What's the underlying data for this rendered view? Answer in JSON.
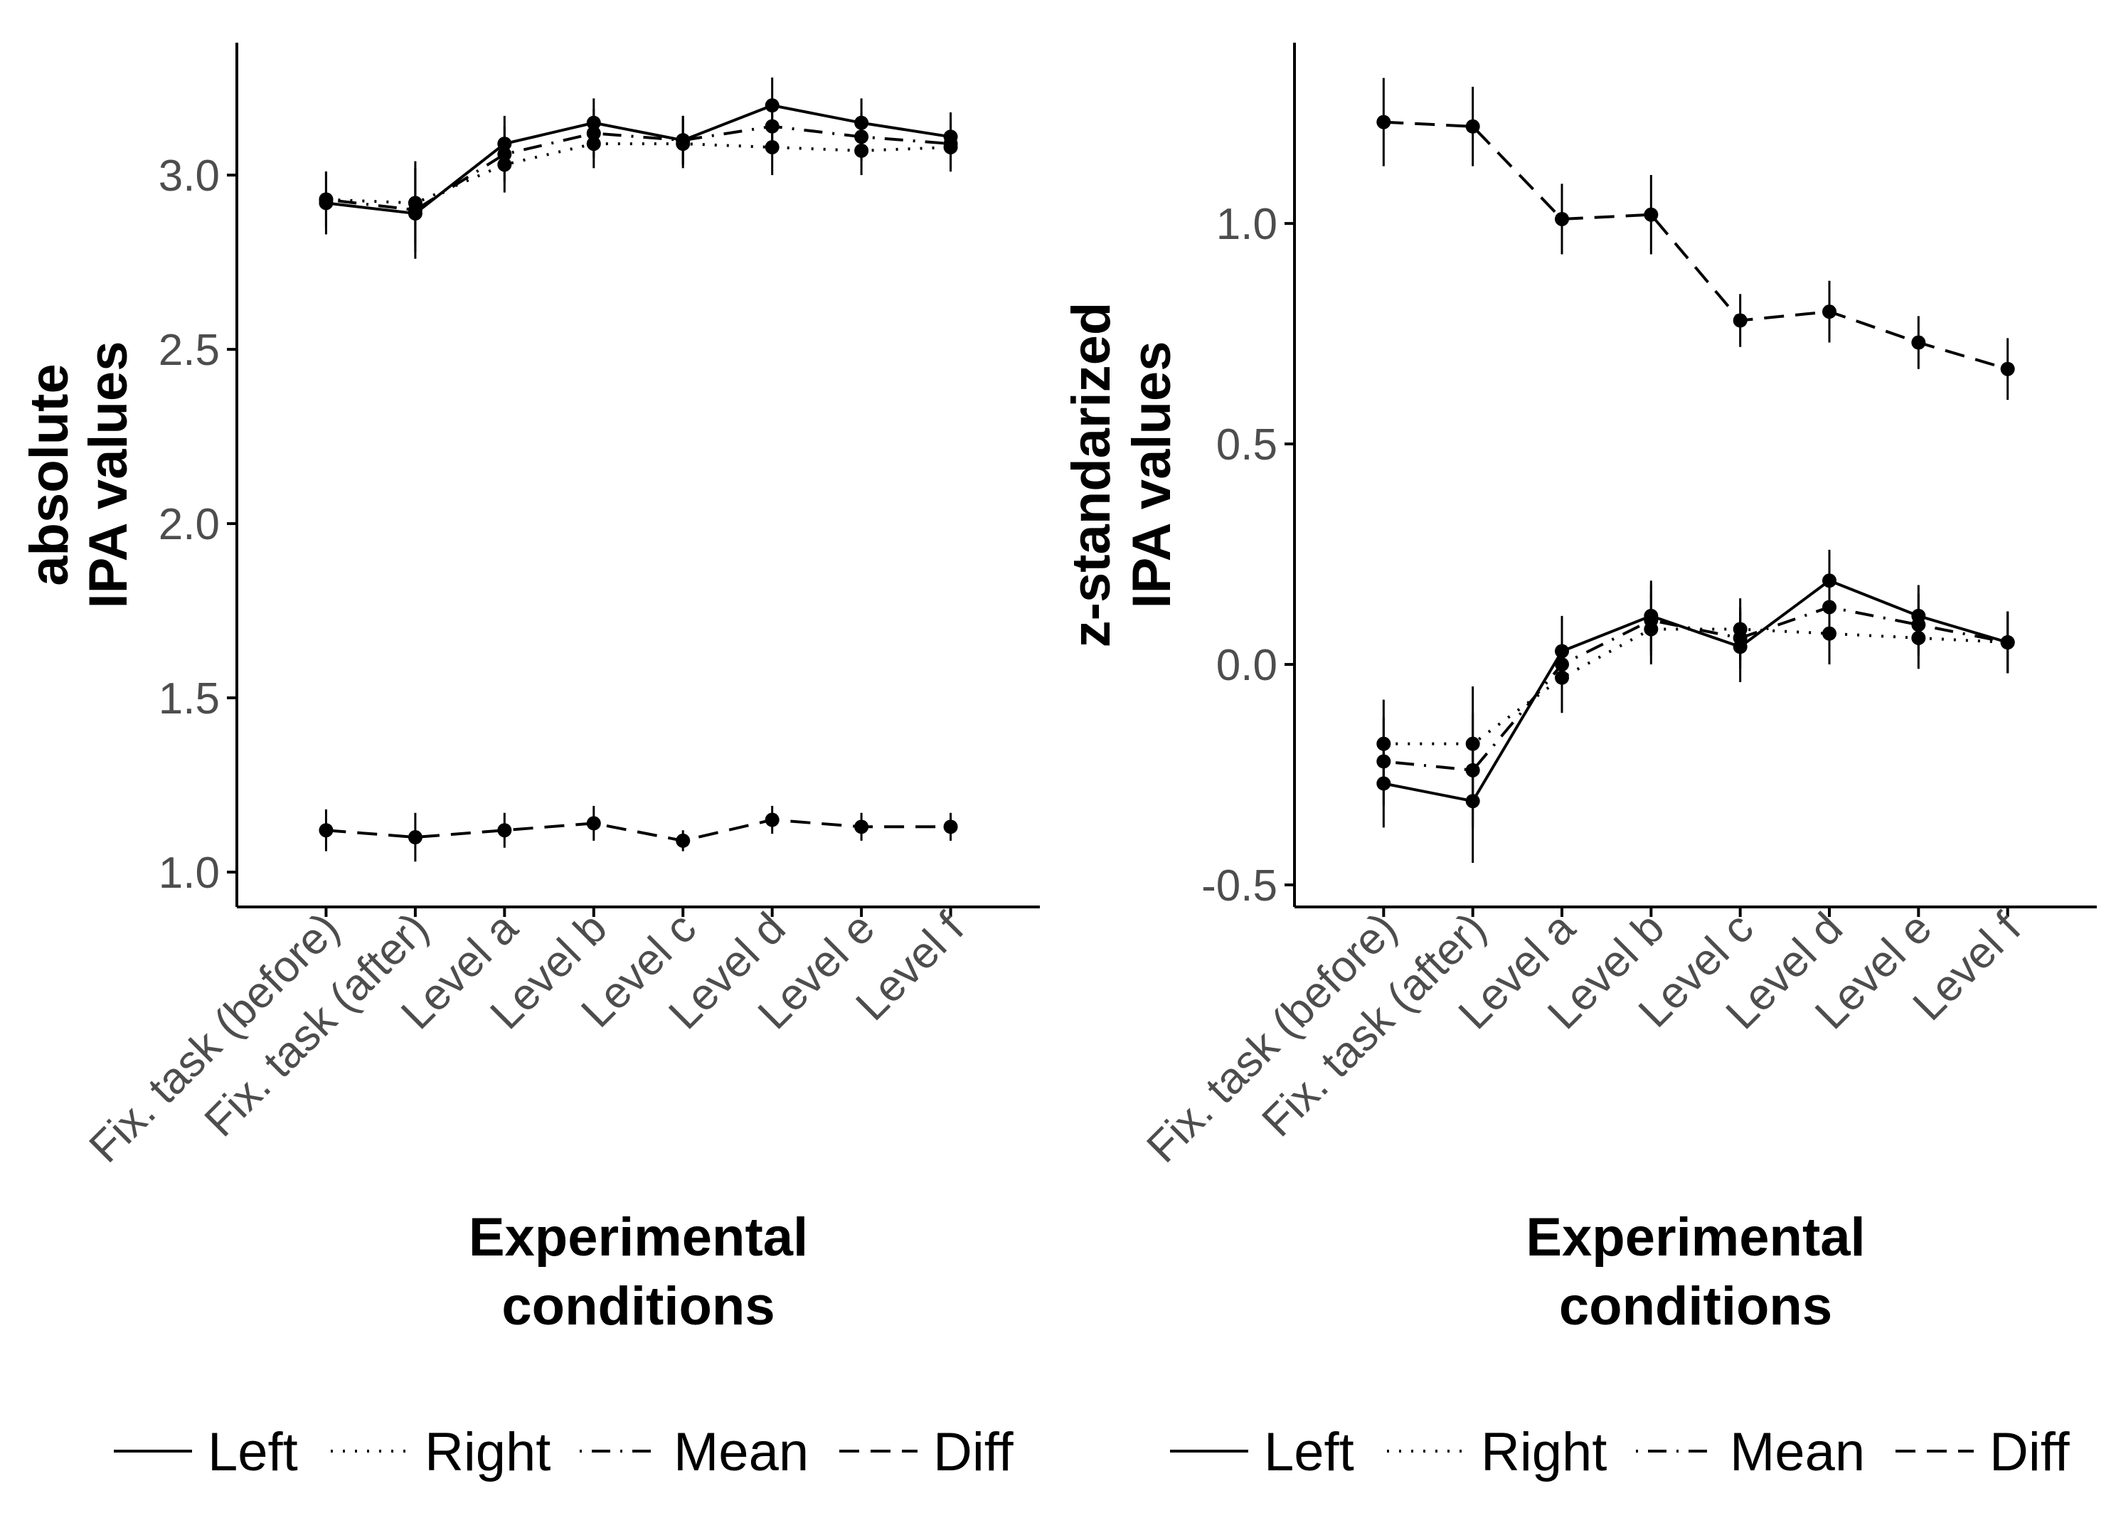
{
  "figure": {
    "line_color": "#000000",
    "tick_color": "#4d4d4d",
    "background": "#ffffff"
  },
  "chart_data": [
    {
      "type": "line",
      "categories": [
        "Fix. task (before)",
        "Fix. task (after)",
        "Level a",
        "Level b",
        "Level c",
        "Level d",
        "Level e",
        "Level f"
      ],
      "xlabel": "Experimental conditions",
      "ylabel": "absolute IPA values",
      "ylabel_lines": [
        "absolute",
        "IPA values"
      ],
      "xlabel_lines": [
        "Experimental",
        "conditions"
      ],
      "ylim": [
        0.9,
        3.38
      ],
      "yticks": [
        1.0,
        1.5,
        2.0,
        2.5,
        3.0
      ],
      "ytick_labels": [
        "1.0",
        "1.5",
        "2.0",
        "2.5",
        "3.0"
      ],
      "grid": false,
      "legend_position": "bottom",
      "series": [
        {
          "name": "Left",
          "linestyle": "solid",
          "values": [
            2.92,
            2.89,
            3.09,
            3.15,
            3.1,
            3.2,
            3.15,
            3.11
          ],
          "err": [
            0.09,
            0.13,
            0.08,
            0.07,
            0.07,
            0.08,
            0.07,
            0.07
          ]
        },
        {
          "name": "Right",
          "linestyle": "dotted",
          "values": [
            2.93,
            2.92,
            3.03,
            3.09,
            3.09,
            3.08,
            3.07,
            3.08
          ],
          "err": [
            0.08,
            0.12,
            0.08,
            0.07,
            0.07,
            0.08,
            0.07,
            0.07
          ]
        },
        {
          "name": "Mean",
          "linestyle": "dotdash",
          "values": [
            2.93,
            2.9,
            3.06,
            3.12,
            3.1,
            3.14,
            3.11,
            3.09
          ],
          "err": [
            0.08,
            0.12,
            0.08,
            0.07,
            0.07,
            0.08,
            0.07,
            0.07
          ]
        },
        {
          "name": "Diff",
          "linestyle": "dashed",
          "values": [
            1.12,
            1.1,
            1.12,
            1.14,
            1.09,
            1.15,
            1.13,
            1.13
          ],
          "err": [
            0.06,
            0.07,
            0.05,
            0.05,
            0.03,
            0.04,
            0.04,
            0.04
          ]
        }
      ]
    },
    {
      "type": "line",
      "categories": [
        "Fix. task (before)",
        "Fix. task (after)",
        "Level a",
        "Level b",
        "Level c",
        "Level d",
        "Level e",
        "Level f"
      ],
      "xlabel": "Experimental conditions",
      "ylabel": "z-standarized IPA values",
      "ylabel_lines": [
        "z-standarized",
        "IPA values"
      ],
      "xlabel_lines": [
        "Experimental",
        "conditions"
      ],
      "ylim": [
        -0.55,
        1.41
      ],
      "yticks": [
        -0.5,
        0.0,
        0.5,
        1.0
      ],
      "ytick_labels": [
        "-0.5",
        "0.0",
        "0.5",
        "1.0"
      ],
      "grid": false,
      "legend_position": "bottom",
      "series": [
        {
          "name": "Left",
          "linestyle": "solid",
          "values": [
            -0.27,
            -0.31,
            0.03,
            0.11,
            0.04,
            0.19,
            0.11,
            0.05
          ],
          "err": [
            0.1,
            0.14,
            0.08,
            0.08,
            0.08,
            0.07,
            0.07,
            0.07
          ]
        },
        {
          "name": "Right",
          "linestyle": "dotted",
          "values": [
            -0.18,
            -0.18,
            -0.03,
            0.08,
            0.08,
            0.07,
            0.06,
            0.05
          ],
          "err": [
            0.1,
            0.13,
            0.08,
            0.08,
            0.07,
            0.07,
            0.07,
            0.07
          ]
        },
        {
          "name": "Mean",
          "linestyle": "dotdash",
          "values": [
            -0.22,
            -0.24,
            0.0,
            0.1,
            0.06,
            0.13,
            0.09,
            0.05
          ],
          "err": [
            0.1,
            0.13,
            0.08,
            0.08,
            0.07,
            0.07,
            0.07,
            0.07
          ]
        },
        {
          "name": "Diff",
          "linestyle": "dashed",
          "values": [
            1.23,
            1.22,
            1.01,
            1.02,
            0.78,
            0.8,
            0.73,
            0.67
          ],
          "err": [
            0.1,
            0.09,
            0.08,
            0.09,
            0.06,
            0.07,
            0.06,
            0.07
          ]
        }
      ]
    }
  ]
}
